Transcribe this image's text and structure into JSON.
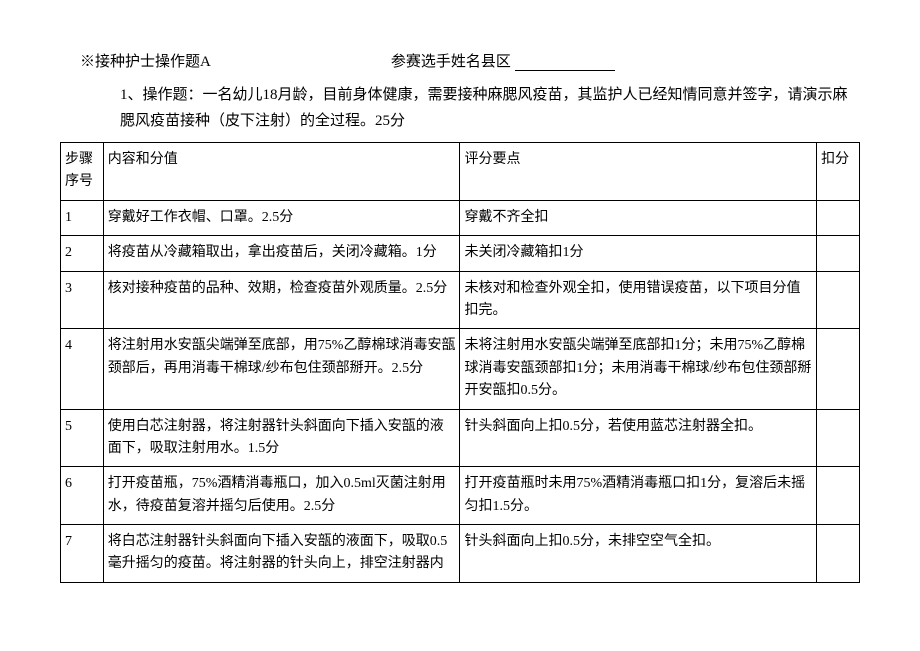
{
  "header": {
    "title_left": "※接种护士操作题A",
    "title_right_prefix": "参赛选手姓名县区"
  },
  "question": {
    "text": "1、操作题：一名幼儿18月龄，目前身体健康，需要接种麻腮风疫苗，其监护人已经知情同意并签字，请演示麻腮风疫苗接种（皮下注射）的全过程。25分"
  },
  "table": {
    "headers": {
      "step": "步骤序号",
      "content": "内容和分值",
      "eval": "评分要点",
      "deduct": "扣分"
    },
    "rows": [
      {
        "step": "1",
        "content": "穿戴好工作衣帽、口罩。2.5分",
        "eval": "穿戴不齐全扣",
        "deduct": ""
      },
      {
        "step": "2",
        "content": "将疫苗从冷藏箱取出，拿出疫苗后，关闭冷藏箱。1分",
        "eval": "未关闭冷藏箱扣1分",
        "deduct": ""
      },
      {
        "step": "3",
        "content": "核对接种疫苗的品种、效期，检查疫苗外观质量。2.5分",
        "eval": "未核对和检查外观全扣，使用错误疫苗，以下项目分值扣完。",
        "deduct": ""
      },
      {
        "step": "4",
        "content": "将注射用水安瓿尖端弹至底部，用75%乙醇棉球消毒安瓿颈部后，再用消毒干棉球/纱布包住颈部掰开。2.5分",
        "eval": "未将注射用水安瓿尖端弹至底部扣1分；未用75%乙醇棉球消毒安瓿颈部扣1分；未用消毒干棉球/纱布包住颈部掰开安瓿扣0.5分。",
        "deduct": ""
      },
      {
        "step": "5",
        "content": "使用白芯注射器，将注射器针头斜面向下插入安瓿的液面下，吸取注射用水。1.5分",
        "eval": "针头斜面向上扣0.5分，若使用蓝芯注射器全扣。",
        "deduct": ""
      },
      {
        "step": "6",
        "content": "打开疫苗瓶，75%酒精消毒瓶口，加入0.5ml灭菌注射用水，待疫苗复溶并摇匀后使用。2.5分",
        "eval": "打开疫苗瓶时未用75%酒精消毒瓶口扣1分，复溶后未摇匀扣1.5分。",
        "deduct": ""
      },
      {
        "step": "7",
        "content": "将白芯注射器针头斜面向下插入安瓿的液面下，吸取0.5毫升摇匀的疫苗。将注射器的针头向上，排空注射器内",
        "eval": "针头斜面向上扣0.5分，未排空空气全扣。",
        "deduct": ""
      }
    ]
  }
}
